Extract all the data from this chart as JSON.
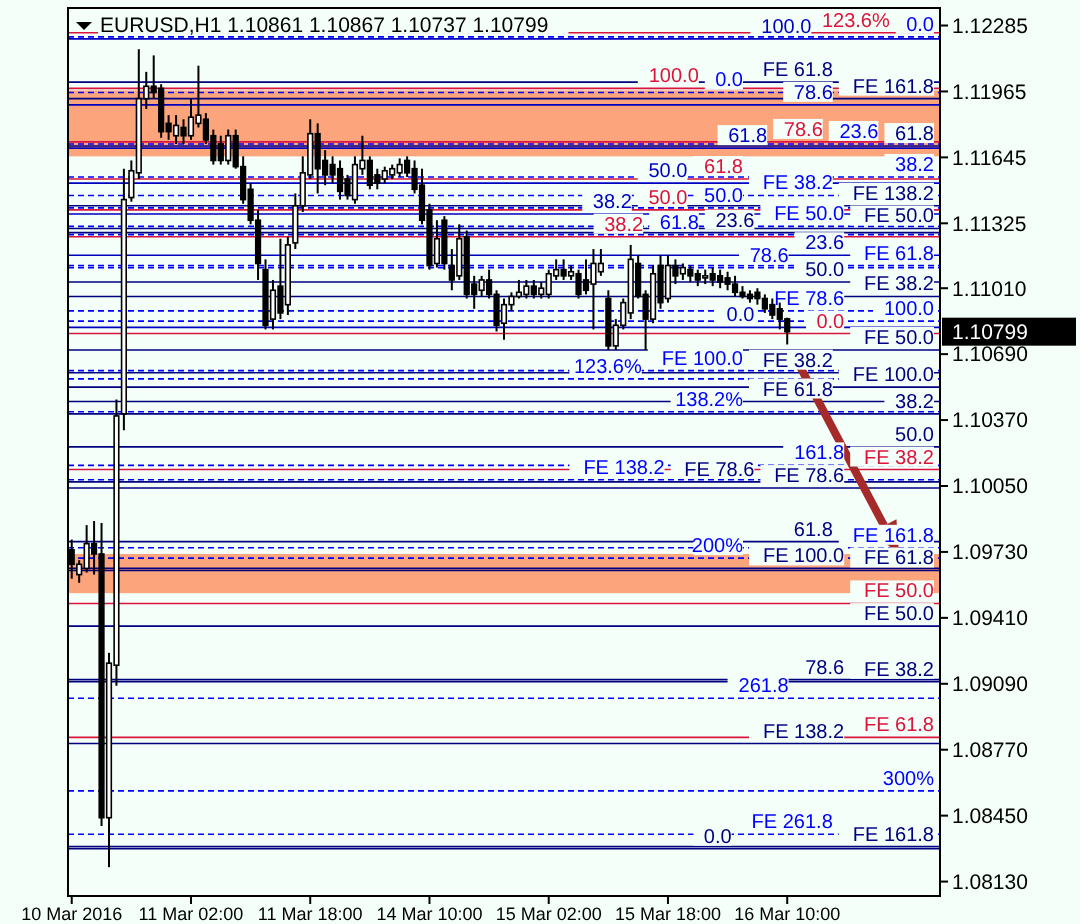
{
  "chart_data": {
    "type": "candlestick",
    "title": "EURUSD,H1  1.10861 1.10867 1.10737 1.10799",
    "categories": [
      "10 Mar 2016",
      null,
      null,
      null,
      null,
      null,
      null,
      null,
      null,
      null,
      null,
      null,
      null,
      null,
      null,
      null,
      "11 Mar 02:00",
      null,
      null,
      null,
      null,
      null,
      null,
      null,
      null,
      null,
      null,
      null,
      null,
      null,
      null,
      null,
      "11 Mar 18:00",
      null,
      null,
      null,
      null,
      null,
      null,
      null,
      null,
      null,
      null,
      null,
      null,
      null,
      null,
      null,
      "14 Mar 10:00",
      null,
      null,
      null,
      null,
      null,
      null,
      null,
      null,
      null,
      null,
      null,
      null,
      null,
      null,
      null,
      "15 Mar 02:00",
      null,
      null,
      null,
      null,
      null,
      null,
      null,
      null,
      null,
      null,
      null,
      null,
      null,
      null,
      null,
      "15 Mar 18:00",
      null,
      null,
      null,
      null,
      null,
      null,
      null,
      null,
      null,
      null,
      null,
      null,
      null,
      null,
      null,
      "16 Mar 10:00",
      null,
      null,
      null,
      null,
      null,
      null,
      null,
      null,
      null,
      null,
      null,
      null,
      null,
      null,
      null,
      null,
      null,
      null,
      null,
      null
    ],
    "ohlc": [
      [
        1.0974,
        1.0979,
        1.096,
        1.0967
      ],
      [
        1.0962,
        1.0969,
        1.0958,
        1.0967
      ],
      [
        1.0965,
        1.0986,
        1.0963,
        1.0977
      ],
      [
        1.0977,
        1.0988,
        1.0962,
        1.0972
      ],
      [
        1.0972,
        1.0987,
        1.084,
        1.0844
      ],
      [
        1.0844,
        1.0924,
        1.082,
        1.0919
      ],
      [
        1.0918,
        1.1047,
        1.0908,
        1.1039
      ],
      [
        1.104,
        1.1159,
        1.1032,
        1.1144
      ],
      [
        1.1145,
        1.1163,
        1.1143,
        1.1158
      ],
      [
        1.1157,
        1.1217,
        1.1154,
        1.1193
      ],
      [
        1.1193,
        1.1206,
        1.1188,
        1.1199
      ],
      [
        1.1199,
        1.1214,
        1.1193,
        1.1196
      ],
      [
        1.1198,
        1.12,
        1.1174,
        1.1177
      ],
      [
        1.1181,
        1.1185,
        1.1173,
        1.1177
      ],
      [
        1.1175,
        1.1185,
        1.1171,
        1.118
      ],
      [
        1.1179,
        1.1183,
        1.1171,
        1.1175
      ],
      [
        1.1175,
        1.1193,
        1.1173,
        1.1184
      ],
      [
        1.1181,
        1.1209,
        1.1179,
        1.1185
      ],
      [
        1.1183,
        1.1186,
        1.1171,
        1.1173
      ],
      [
        1.1175,
        1.1178,
        1.1161,
        1.1163
      ],
      [
        1.1171,
        1.1175,
        1.1161,
        1.1163
      ],
      [
        1.1163,
        1.1178,
        1.1161,
        1.1175
      ],
      [
        1.1175,
        1.1178,
        1.1159,
        1.116
      ],
      [
        1.116,
        1.1165,
        1.1142,
        1.1144
      ],
      [
        1.1149,
        1.1152,
        1.1132,
        1.1134
      ],
      [
        1.1134,
        1.1139,
        1.1105,
        1.1113
      ],
      [
        1.111,
        1.1115,
        1.1081,
        1.1083
      ],
      [
        1.1086,
        1.1105,
        1.1081,
        1.11
      ],
      [
        1.1102,
        1.1125,
        1.1086,
        1.1089
      ],
      [
        1.1093,
        1.1126,
        1.1088,
        1.1122
      ],
      [
        1.1123,
        1.1147,
        1.112,
        1.1141
      ],
      [
        1.1141,
        1.1165,
        1.1138,
        1.1157
      ],
      [
        1.1156,
        1.1183,
        1.1154,
        1.1176
      ],
      [
        1.1176,
        1.1181,
        1.1147,
        1.1159
      ],
      [
        1.1163,
        1.1168,
        1.1151,
        1.1156
      ],
      [
        1.1161,
        1.1165,
        1.1152,
        1.1156
      ],
      [
        1.1159,
        1.1163,
        1.1144,
        1.1148
      ],
      [
        1.1154,
        1.1156,
        1.1144,
        1.1146
      ],
      [
        1.1144,
        1.1165,
        1.1142,
        1.1161
      ],
      [
        1.1159,
        1.1175,
        1.1156,
        1.1163
      ],
      [
        1.1163,
        1.1165,
        1.1149,
        1.1151
      ],
      [
        1.1156,
        1.1159,
        1.1149,
        1.1152
      ],
      [
        1.1154,
        1.116,
        1.1152,
        1.1158
      ],
      [
        1.1156,
        1.1161,
        1.1154,
        1.1159
      ],
      [
        1.1157,
        1.1164,
        1.1155,
        1.1161
      ],
      [
        1.1163,
        1.1165,
        1.1155,
        1.1157
      ],
      [
        1.1159,
        1.1163,
        1.1147,
        1.1149
      ],
      [
        1.1151,
        1.1159,
        1.1132,
        1.1134
      ],
      [
        1.1139,
        1.1142,
        1.111,
        1.1112
      ],
      [
        1.1113,
        1.1134,
        1.1111,
        1.1125
      ],
      [
        1.1134,
        1.1136,
        1.111,
        1.1113
      ],
      [
        1.1112,
        1.112,
        1.11,
        1.1105
      ],
      [
        1.1107,
        1.1132,
        1.1105,
        1.1125
      ],
      [
        1.1126,
        1.1129,
        1.1096,
        1.1098
      ],
      [
        1.1103,
        1.1107,
        1.1091,
        1.1098
      ],
      [
        1.11,
        1.1107,
        1.1097,
        1.1105
      ],
      [
        1.1105,
        1.111,
        1.1096,
        1.1098
      ],
      [
        1.1098,
        1.11,
        1.108,
        1.1083
      ],
      [
        1.1084,
        1.1096,
        1.1076,
        1.1093
      ],
      [
        1.1093,
        1.1099,
        1.109,
        1.1097
      ],
      [
        1.1097,
        1.1105,
        1.1096,
        1.1099
      ],
      [
        1.1098,
        1.1105,
        1.1096,
        1.1102
      ],
      [
        1.1102,
        1.1105,
        1.1096,
        1.1098
      ],
      [
        1.1098,
        1.1104,
        1.1096,
        1.1101
      ],
      [
        1.1098,
        1.111,
        1.1096,
        1.1108
      ],
      [
        1.1107,
        1.1115,
        1.1105,
        1.111
      ],
      [
        1.111,
        1.1115,
        1.1105,
        1.1107
      ],
      [
        1.1107,
        1.1112,
        1.1105,
        1.1109
      ],
      [
        1.1108,
        1.111,
        1.1096,
        1.1098
      ],
      [
        1.1105,
        1.1115,
        1.1098,
        1.11
      ],
      [
        1.1103,
        1.112,
        1.1081,
        1.1113
      ],
      [
        1.1109,
        1.112,
        1.1107,
        1.1113
      ],
      [
        1.1096,
        1.11,
        1.1071,
        1.1073
      ],
      [
        1.1073,
        1.1086,
        1.1071,
        1.1083
      ],
      [
        1.1083,
        1.1096,
        1.1081,
        1.1094
      ],
      [
        1.1089,
        1.1122,
        1.1086,
        1.1115
      ],
      [
        1.1113,
        1.1117,
        1.1096,
        1.1097
      ],
      [
        1.1098,
        1.11,
        1.1071,
        1.1086
      ],
      [
        1.1086,
        1.1112,
        1.1084,
        1.1108
      ],
      [
        1.1112,
        1.1117,
        1.1091,
        1.1094
      ],
      [
        1.1096,
        1.1117,
        1.1094,
        1.1112
      ],
      [
        1.1112,
        1.1115,
        1.1103,
        1.1107
      ],
      [
        1.1108,
        1.1113,
        1.1105,
        1.1111
      ],
      [
        1.111,
        1.1112,
        1.1104,
        1.1107
      ],
      [
        1.1108,
        1.111,
        1.1102,
        1.1105
      ],
      [
        1.1106,
        1.111,
        1.1103,
        1.1107
      ],
      [
        1.1108,
        1.1111,
        1.1102,
        1.1105
      ],
      [
        1.1107,
        1.111,
        1.1101,
        1.1104
      ],
      [
        1.1106,
        1.1109,
        1.11,
        1.1103
      ],
      [
        1.1103,
        1.1107,
        1.1097,
        1.1099
      ],
      [
        1.1099,
        1.1102,
        1.1096,
        1.1097
      ],
      [
        1.1098,
        1.11,
        1.1094,
        1.1096
      ],
      [
        1.1099,
        1.1101,
        1.1093,
        1.1096
      ],
      [
        1.1096,
        1.1098,
        1.1089,
        1.1091
      ],
      [
        1.1093,
        1.1096,
        1.1086,
        1.1088
      ],
      [
        1.1091,
        1.1094,
        1.1081,
        1.1086
      ],
      [
        1.10861,
        1.10867,
        1.10737,
        1.10799
      ],
      null,
      null,
      null,
      null,
      null,
      null,
      null,
      null,
      null,
      null,
      null,
      null,
      null,
      null,
      null,
      null,
      null,
      null,
      null,
      null
    ],
    "ylim": [
      1.0806,
      1.1237
    ],
    "yticks": [
      {
        "value": 1.12285,
        "label": "1.12285"
      },
      {
        "value": 1.11965,
        "label": "1.11965"
      },
      {
        "value": 1.11645,
        "label": "1.11645"
      },
      {
        "value": 1.11325,
        "label": "1.11325"
      },
      {
        "value": 1.1101,
        "label": "1.11010"
      },
      {
        "value": 1.1069,
        "label": "1.10690"
      },
      {
        "value": 1.1037,
        "label": "1.10370"
      },
      {
        "value": 1.1005,
        "label": "1.10050"
      },
      {
        "value": 1.0973,
        "label": "1.09730"
      },
      {
        "value": 1.0941,
        "label": "1.09410"
      },
      {
        "value": 1.0909,
        "label": "1.09090"
      },
      {
        "value": 1.0877,
        "label": "1.08770"
      },
      {
        "value": 1.0845,
        "label": "1.08450"
      },
      {
        "value": 1.0813,
        "label": "1.08130"
      }
    ],
    "bands": [
      {
        "axis": "y",
        "from": 1.1165,
        "to": 1.1197,
        "color": "#fca47c"
      },
      {
        "axis": "y",
        "from": 1.0953,
        "to": 1.0972,
        "color": "#fca47c"
      }
    ],
    "ref_lines": [
      {
        "axis": "y",
        "value": 1.1193,
        "label": "FE 161.8",
        "color": "#000080",
        "line_style": "solid"
      },
      {
        "axis": "y",
        "value": 1.117,
        "color": "#000080",
        "line_style": "solid"
      },
      {
        "axis": "y",
        "value": 1.1141,
        "label": "FE 138.2",
        "color": "#000080",
        "line_style": "solid"
      },
      {
        "axis": "y",
        "value": 1.1104,
        "color": "#000080",
        "line_style": "solid"
      },
      {
        "axis": "y",
        "value": 1.1053,
        "label": "FE 100.0",
        "color": "#000080",
        "line_style": "solid"
      },
      {
        "axis": "y",
        "value": 1.104,
        "color": "#000080",
        "line_style": "solid"
      },
      {
        "axis": "y",
        "value": 1.1013,
        "label": "FE 38.2",
        "color": "#dc143c",
        "line_style": "solid"
      },
      {
        "axis": "y",
        "value": 1.1004,
        "label": "FE 78.6",
        "color": "#000080",
        "line_style": "solid"
      },
      {
        "axis": "y",
        "value": 1.0964,
        "label": "FE 61.8",
        "color": "#000080",
        "line_style": "solid"
      },
      {
        "axis": "y",
        "value": 1.0948,
        "label": "FE 50.0",
        "color": "#dc143c",
        "line_style": "solid"
      },
      {
        "axis": "y",
        "value": 1.0937,
        "label": "FE 50.0",
        "color": "#000080",
        "line_style": "solid"
      },
      {
        "axis": "y",
        "value": 1.091,
        "label": "FE 38.2",
        "color": "#000080",
        "line_style": "solid"
      },
      {
        "axis": "y",
        "value": 1.0883,
        "label": "FE 61.8",
        "color": "#dc143c",
        "line_style": "solid"
      },
      {
        "axis": "y",
        "value": 1.0829,
        "color": "#000080",
        "line_style": "solid"
      },
      {
        "axis": "y",
        "value": 1.1201,
        "label": "FE 61.8",
        "color": "#000080",
        "line_style": "solid"
      },
      {
        "axis": "y",
        "value": 1.113,
        "label": "FE 50.0",
        "color": "#000080",
        "line_style": "solid"
      },
      {
        "axis": "y",
        "value": 1.106,
        "label": "FE 38.2",
        "color": "#000080",
        "line_style": "solid"
      },
      {
        "axis": "y",
        "value": 1.1223,
        "color": "#0000ff",
        "line_style": "dashed"
      },
      {
        "axis": "y",
        "value": 1.1128,
        "color": "#000080",
        "line_style": "solid"
      },
      {
        "axis": "y",
        "value": 1.1097,
        "label": "FE 38.2",
        "color": "#000080",
        "line_style": "solid"
      },
      {
        "axis": "y",
        "value": 1.1071,
        "label": "FE 50.0",
        "color": "#000080",
        "line_style": "solid"
      },
      {
        "axis": "y",
        "value": 1.1046,
        "label": "FE 61.8",
        "color": "#000080",
        "line_style": "solid"
      },
      {
        "axis": "y",
        "value": 1.1024,
        "color": "#000080",
        "line_style": "solid"
      },
      {
        "axis": "y",
        "value": 1.1007,
        "label": "FE 78.6",
        "color": "#000080",
        "line_style": "solid"
      },
      {
        "axis": "y",
        "value": 1.0978,
        "color": "#000080",
        "line_style": "solid"
      },
      {
        "axis": "y",
        "value": 1.0965,
        "label": "FE 100.0",
        "color": "#000080",
        "line_style": "solid"
      },
      {
        "axis": "y",
        "value": 1.0911,
        "color": "#000080",
        "line_style": "solid"
      },
      {
        "axis": "y",
        "value": 1.088,
        "label": "FE 138.2",
        "color": "#000080",
        "line_style": "solid"
      },
      {
        "axis": "y",
        "value": 1.083,
        "label": "FE 161.8",
        "color": "#000080",
        "line_style": "solid"
      },
      {
        "axis": "y",
        "value": 1.1196,
        "color": "#0000ff",
        "line_style": "dashed"
      },
      {
        "axis": "y",
        "value": 1.1171,
        "color": "#0000ff",
        "line_style": "dashed"
      },
      {
        "axis": "y",
        "value": 1.1155,
        "color": "#0000ff",
        "line_style": "dashed"
      },
      {
        "axis": "y",
        "value": 1.114,
        "color": "#0000ff",
        "line_style": "dashed"
      },
      {
        "axis": "y",
        "value": 1.1127,
        "color": "#0000ff",
        "line_style": "dashed"
      },
      {
        "axis": "y",
        "value": 1.1111,
        "color": "#0000ff",
        "line_style": "dashed"
      },
      {
        "axis": "y",
        "value": 1.1085,
        "color": "#0000ff",
        "line_style": "dashed"
      },
      {
        "axis": "y",
        "value": 1.1057,
        "color": "#0000ff",
        "line_style": "dashed"
      },
      {
        "axis": "y",
        "value": 1.1041,
        "color": "#0000ff",
        "line_style": "dashed"
      },
      {
        "axis": "y",
        "value": 1.1015,
        "color": "#0000ff",
        "line_style": "dashed"
      },
      {
        "axis": "y",
        "value": 1.097,
        "color": "#0000ff",
        "line_style": "dashed"
      },
      {
        "axis": "y",
        "value": 1.0902,
        "color": "#0000ff",
        "line_style": "dashed"
      },
      {
        "axis": "y",
        "value": 1.0857,
        "color": "#0000ff",
        "line_style": "dashed"
      },
      {
        "axis": "y",
        "value": 1.1225,
        "color": "#dc143c",
        "line_style": "solid"
      },
      {
        "axis": "y",
        "value": 1.1198,
        "color": "#dc143c",
        "line_style": "solid"
      },
      {
        "axis": "y",
        "value": 1.1172,
        "color": "#dc143c",
        "line_style": "solid"
      },
      {
        "axis": "y",
        "value": 1.1154,
        "color": "#dc143c",
        "line_style": "solid"
      },
      {
        "axis": "y",
        "value": 1.1139,
        "color": "#dc143c",
        "line_style": "solid"
      },
      {
        "axis": "y",
        "value": 1.1126,
        "color": "#dc143c",
        "line_style": "solid"
      },
      {
        "axis": "y",
        "value": 1.1079,
        "color": "#dc143c",
        "line_style": "solid"
      },
      {
        "axis": "y",
        "value": 1.1146,
        "label": "FE 38.2",
        "color": "#0000ff",
        "line_style": "dashed"
      },
      {
        "axis": "y",
        "value": 1.1131,
        "label": "FE 50.0",
        "color": "#0000ff",
        "line_style": "dashed"
      },
      {
        "axis": "y",
        "value": 1.1112,
        "label": "FE 61.8",
        "color": "#0000ff",
        "line_style": "dashed"
      },
      {
        "axis": "y",
        "value": 1.109,
        "label": "FE 78.6",
        "color": "#0000ff",
        "line_style": "dashed"
      },
      {
        "axis": "y",
        "value": 1.1061,
        "label": "FE 100.0",
        "color": "#0000ff",
        "line_style": "dashed"
      },
      {
        "axis": "y",
        "value": 1.1008,
        "label": "FE 138.2",
        "color": "#0000ff",
        "line_style": "dashed"
      },
      {
        "axis": "y",
        "value": 1.0975,
        "label": "FE 161.8",
        "color": "#0000ff",
        "line_style": "dashed"
      },
      {
        "axis": "y",
        "value": 1.0836,
        "label": "FE 261.8",
        "color": "#0000ff",
        "line_style": "dashed"
      },
      {
        "axis": "y",
        "value": 1.1222,
        "color": "#0000c0",
        "line_style": "solid"
      },
      {
        "axis": "y",
        "value": 1.119,
        "color": "#0000c0",
        "line_style": "solid"
      },
      {
        "axis": "y",
        "value": 1.1169,
        "color": "#0000c0",
        "line_style": "solid"
      },
      {
        "axis": "y",
        "value": 1.1152,
        "color": "#0000c0",
        "line_style": "solid"
      },
      {
        "axis": "y",
        "value": 1.1137,
        "color": "#0000c0",
        "line_style": "solid"
      },
      {
        "axis": "y",
        "value": 1.1117,
        "color": "#0000c0",
        "line_style": "solid"
      },
      {
        "axis": "y",
        "value": 1.1082,
        "color": "#0000c0",
        "line_style": "solid"
      }
    ],
    "annotations": [
      "1.10799",
      {
        "text": "61.8",
        "y": 1.117
      },
      {
        "text": "50.0",
        "y": 1.1104
      },
      {
        "text": "38.2",
        "y": 1.104
      },
      {
        "text": "0.0",
        "y": 1.0829
      },
      {
        "text": "0.0",
        "y": 1.1223
      },
      {
        "text": "23.6",
        "y": 1.1128
      },
      {
        "text": "50.0",
        "y": 1.1024
      },
      {
        "text": "61.8",
        "y": 1.0978
      },
      {
        "text": "78.6",
        "y": 1.0911
      },
      {
        "text": "0.0",
        "y": 1.1196
      },
      {
        "text": "23.6",
        "y": 1.1171
      },
      {
        "text": "38.2",
        "y": 1.1155
      },
      {
        "text": "50.0",
        "y": 1.114
      },
      {
        "text": "61.8",
        "y": 1.1127
      },
      {
        "text": "78.6",
        "y": 1.1111
      },
      {
        "text": "100.0",
        "y": 1.1085
      },
      {
        "text": "123.6%",
        "y": 1.1057
      },
      {
        "text": "138.2%",
        "y": 1.1041
      },
      {
        "text": "161.8",
        "y": 1.1015
      },
      {
        "text": "200%",
        "y": 1.097
      },
      {
        "text": "261.8",
        "y": 1.0902
      },
      {
        "text": "300%",
        "y": 1.0857
      },
      {
        "text": "123.6%",
        "y": 1.1225
      },
      {
        "text": "100.0",
        "y": 1.1198
      },
      {
        "text": "78.6",
        "y": 1.1172
      },
      {
        "text": "61.8",
        "y": 1.1154
      },
      {
        "text": "50.0",
        "y": 1.1139
      },
      {
        "text": "38.2",
        "y": 1.1126
      },
      {
        "text": "0.0",
        "y": 1.1079
      },
      {
        "text": "100.0",
        "y": 1.1222
      },
      {
        "text": "78.6",
        "y": 1.119
      },
      {
        "text": "61.8",
        "y": 1.1169
      },
      {
        "text": "50.0",
        "y": 1.1152
      },
      {
        "text": "38.2",
        "y": 1.1137
      },
      {
        "text": "23.6",
        "y": 1.1117
      },
      {
        "text": "0.0",
        "y": 1.1082
      }
    ]
  }
}
